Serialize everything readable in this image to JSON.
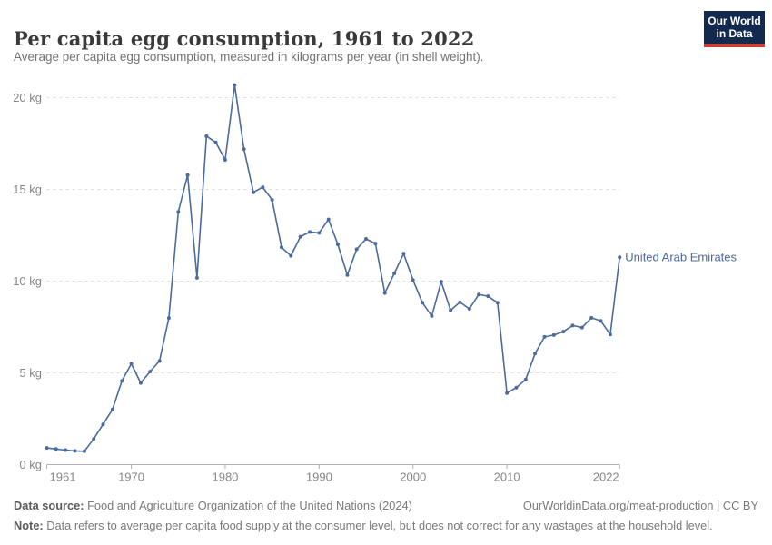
{
  "header": {
    "title": "Per capita egg consumption, 1961 to 2022",
    "subtitle": "Average per capita egg consumption, measured in kilograms per year (in shell weight).",
    "logo_line1": "Our World",
    "logo_line2": "in Data"
  },
  "chart_data": {
    "type": "line",
    "title": "Per capita egg consumption, 1961 to 2022",
    "ylabel": "",
    "xlabel": "",
    "xlim": [
      1961,
      2022
    ],
    "ylim": [
      0,
      20.7
    ],
    "grid": "horizontal-dashed",
    "legend_position": "end-of-line-label",
    "entity_label": "United Arab Emirates",
    "x_ticks": [
      1961,
      1970,
      1980,
      1990,
      2000,
      2010,
      2022
    ],
    "x_tick_labels": [
      "1961",
      "1970",
      "1980",
      "1990",
      "2000",
      "2010",
      "2022"
    ],
    "y_ticks": [
      0,
      5,
      10,
      15,
      20
    ],
    "y_tick_labels": [
      "0 kg",
      "5 kg",
      "10 kg",
      "15 kg",
      "20 kg"
    ],
    "series": [
      {
        "name": "United Arab Emirates",
        "color": "#4C6A9C",
        "years": [
          1961,
          1962,
          1963,
          1964,
          1965,
          1966,
          1967,
          1968,
          1969,
          1970,
          1971,
          1972,
          1973,
          1974,
          1975,
          1976,
          1977,
          1978,
          1979,
          1980,
          1981,
          1982,
          1983,
          1984,
          1985,
          1986,
          1987,
          1988,
          1989,
          1990,
          1991,
          1992,
          1993,
          1994,
          1995,
          1996,
          1997,
          1998,
          1999,
          2000,
          2001,
          2002,
          2003,
          2004,
          2005,
          2006,
          2007,
          2008,
          2009,
          2010,
          2011,
          2012,
          2013,
          2014,
          2015,
          2016,
          2017,
          2018,
          2019,
          2020,
          2021,
          2022
        ],
        "values": [
          0.91,
          0.85,
          0.79,
          0.75,
          0.73,
          1.4,
          2.2,
          3.01,
          4.56,
          5.5,
          4.45,
          5.07,
          5.65,
          7.99,
          13.77,
          15.78,
          10.18,
          17.9,
          17.56,
          16.61,
          20.69,
          17.2,
          14.84,
          15.12,
          14.43,
          11.84,
          11.38,
          12.42,
          12.68,
          12.63,
          13.36,
          12.0,
          10.33,
          11.74,
          12.3,
          12.05,
          9.35,
          10.42,
          11.5,
          10.06,
          8.82,
          8.1,
          9.97,
          8.41,
          8.85,
          8.49,
          9.27,
          9.18,
          8.82,
          3.9,
          4.2,
          4.64,
          6.05,
          6.96,
          7.06,
          7.25,
          7.58,
          7.47,
          8.0,
          7.83,
          7.09,
          11.3
        ]
      }
    ]
  },
  "footer": {
    "source_label": "Data source:",
    "source_text": " Food and Agriculture Organization of the United Nations (2024)",
    "link_text": "OurWorldinData.org/meat-production | CC BY",
    "note_label": "Note:",
    "note_text": " Data refers to average per capita food supply at the consumer level, but does not correct for any wastages at the household level."
  },
  "colors": {
    "line_blue": "#4C6A9C",
    "logo_navy": "#13294e",
    "logo_red": "#d13d33",
    "gridline": "#dcdcdc",
    "axis": "#b3b3b3",
    "tick_text": "#868686"
  }
}
